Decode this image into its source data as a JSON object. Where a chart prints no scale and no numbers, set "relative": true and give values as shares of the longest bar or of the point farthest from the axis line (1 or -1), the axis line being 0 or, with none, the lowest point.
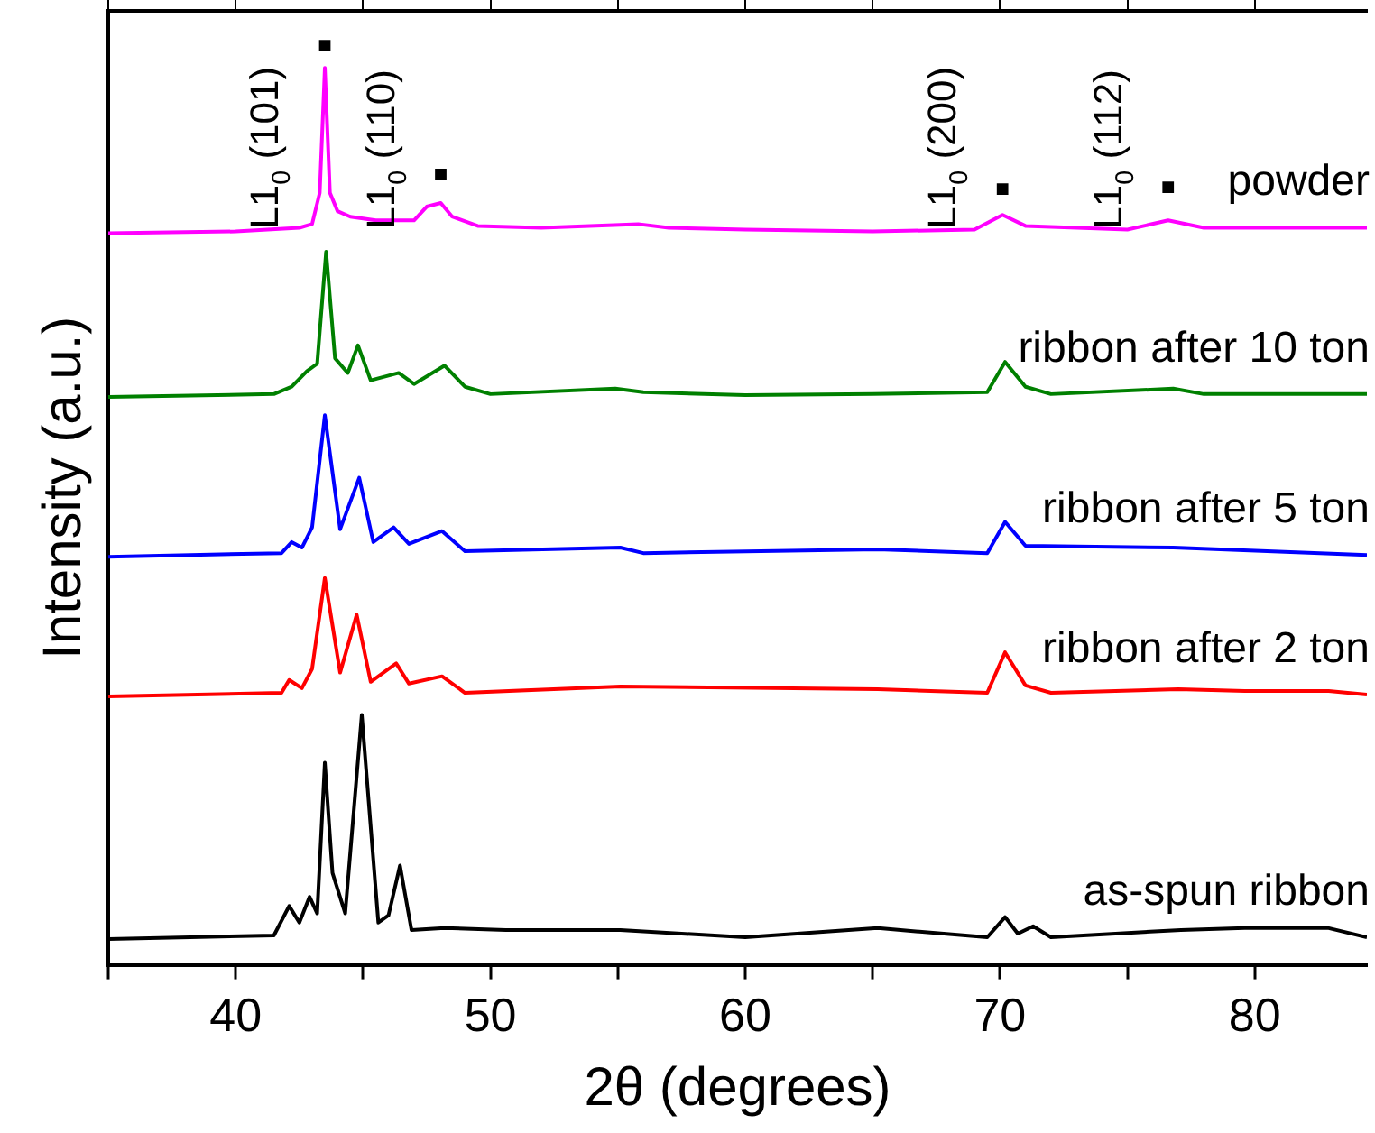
{
  "chart_data": {
    "type": "line",
    "relative": true,
    "xlabel": "2θ (degrees)",
    "ylabel": "Intensity (a.u.)",
    "xlim": [
      35,
      84.4
    ],
    "xticks": [
      {
        "value": 35,
        "label": null
      },
      40,
      {
        "value": 45,
        "label": null
      },
      50,
      {
        "value": 55,
        "label": null
      },
      60,
      {
        "value": 65,
        "label": null
      },
      70,
      {
        "value": 75,
        "label": null
      },
      80
    ],
    "grid": false,
    "legend": false,
    "marker": "none",
    "series": [
      {
        "name": "powder",
        "color": "#ff00ff",
        "x": [
          35,
          40,
          42.5,
          43.0,
          43.3,
          43.5,
          43.7,
          44.0,
          44.5,
          45.5,
          47.0,
          47.5,
          48.05,
          48.5,
          49.5,
          52,
          55.8,
          57,
          60,
          65,
          69,
          70.1,
          71,
          75,
          76.6,
          78,
          84.4
        ],
        "values": [
          0.796,
          0.798,
          0.802,
          0.806,
          0.84,
          0.976,
          0.84,
          0.82,
          0.814,
          0.81,
          0.81,
          0.825,
          0.829,
          0.814,
          0.804,
          0.802,
          0.806,
          0.802,
          0.8,
          0.798,
          0.8,
          0.816,
          0.804,
          0.8,
          0.81,
          0.802,
          0.802
        ]
      },
      {
        "name": "ribbon after 10 ton",
        "color": "#008000",
        "x": [
          35,
          41.5,
          42.2,
          42.8,
          43.2,
          43.55,
          43.9,
          44.4,
          44.8,
          45.3,
          46.4,
          47,
          48.2,
          49,
          50,
          54.9,
          56,
          60,
          65,
          69.5,
          70.2,
          71,
          72,
          76.8,
          78,
          84.4
        ],
        "values": [
          0.618,
          0.621,
          0.629,
          0.646,
          0.654,
          0.776,
          0.66,
          0.644,
          0.674,
          0.636,
          0.644,
          0.632,
          0.652,
          0.629,
          0.621,
          0.627,
          0.623,
          0.62,
          0.621,
          0.623,
          0.656,
          0.629,
          0.621,
          0.627,
          0.621,
          0.621
        ]
      },
      {
        "name": "ribbon after 5 ton",
        "color": "#0000ff",
        "x": [
          35,
          41.8,
          42.2,
          42.6,
          43.0,
          43.5,
          44.1,
          44.85,
          45.4,
          46.2,
          46.8,
          48.1,
          49,
          55.1,
          56,
          65.2,
          69.5,
          70.2,
          71,
          76.8,
          84.4
        ],
        "values": [
          0.444,
          0.448,
          0.46,
          0.454,
          0.476,
          0.598,
          0.474,
          0.53,
          0.46,
          0.476,
          0.458,
          0.472,
          0.45,
          0.454,
          0.448,
          0.452,
          0.448,
          0.482,
          0.456,
          0.454,
          0.446
        ]
      },
      {
        "name": "ribbon after 2 ton",
        "color": "#ff0000",
        "x": [
          35,
          41.8,
          42.1,
          42.6,
          43.0,
          43.5,
          44.1,
          44.75,
          45.3,
          46.3,
          46.8,
          48.1,
          49,
          55.1,
          65.2,
          69.5,
          70.2,
          71,
          72,
          77,
          79.6,
          82.9,
          84.4
        ],
        "values": [
          0.292,
          0.296,
          0.31,
          0.301,
          0.322,
          0.421,
          0.318,
          0.381,
          0.308,
          0.328,
          0.306,
          0.314,
          0.296,
          0.303,
          0.3,
          0.296,
          0.34,
          0.304,
          0.296,
          0.3,
          0.298,
          0.298,
          0.294
        ]
      },
      {
        "name": "as-spun ribbon",
        "color": "#000000",
        "x": [
          35,
          41.5,
          42.1,
          42.5,
          42.9,
          43.2,
          43.5,
          43.8,
          44.3,
          44.95,
          45.6,
          46.0,
          46.45,
          46.9,
          48.2,
          50.6,
          55.1,
          60,
          65.2,
          69.5,
          70.2,
          70.7,
          71.3,
          72,
          77.1,
          79.6,
          82.9,
          84.4
        ],
        "values": [
          0.028,
          0.032,
          0.064,
          0.046,
          0.074,
          0.056,
          0.22,
          0.1,
          0.056,
          0.272,
          0.046,
          0.054,
          0.108,
          0.038,
          0.04,
          0.038,
          0.038,
          0.03,
          0.04,
          0.03,
          0.052,
          0.034,
          0.042,
          0.03,
          0.038,
          0.04,
          0.04,
          0.03
        ]
      },
      {
        "type": "scatter",
        "marker": "square",
        "color": "#000000",
        "x": [
          43.5,
          48.05,
          70.1,
          76.6
        ],
        "values": [
          1.0,
          0.86,
          0.844,
          0.846
        ]
      }
    ],
    "annotations": [
      {
        "text": "L1$_{0}$ (101)",
        "x": 43.5,
        "y": 1.0
      },
      {
        "text": "L1$_{0}$ (110)",
        "x": 48.05,
        "y": 0.86
      },
      {
        "text": "L1$_{0}$ (200)",
        "x": 70.1,
        "y": 0.844
      },
      {
        "text": "L1$_{0}$ (112)",
        "x": 76.6,
        "y": 0.846
      }
    ]
  }
}
